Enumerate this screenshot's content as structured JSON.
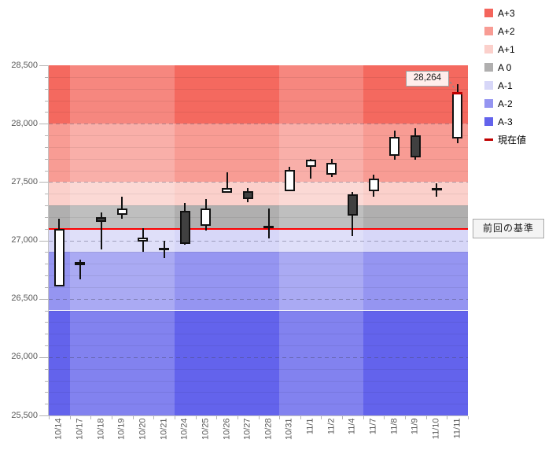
{
  "legend": {
    "items": [
      {
        "label": "A+3",
        "color": "#f4655c",
        "marker": "square"
      },
      {
        "label": "A+2",
        "color": "#f89c94",
        "marker": "square"
      },
      {
        "label": "A+1",
        "color": "#fbd0cb",
        "marker": "square"
      },
      {
        "label": "A 0",
        "color": "#b0afaf",
        "marker": "square"
      },
      {
        "label": "A-1",
        "color": "#d7d7f8",
        "marker": "square"
      },
      {
        "label": "A-2",
        "color": "#9595f1",
        "marker": "square"
      },
      {
        "label": "A-3",
        "color": "#6363ec",
        "marker": "square"
      },
      {
        "label": "現在値",
        "color": "#c00000",
        "marker": "dash"
      }
    ]
  },
  "chart_data": {
    "type": "candlestick",
    "title": "",
    "y_axis": {
      "min": 25500,
      "max": 28500,
      "major_tick": 500,
      "minor_tick": 100,
      "tick_labels": [
        "25,500",
        "26,000",
        "26,500",
        "27,000",
        "27,500",
        "28,000",
        "28,500"
      ],
      "label_color": "#595959"
    },
    "x_labels": [
      "10/14",
      "10/17",
      "10/18",
      "10/19",
      "10/20",
      "10/21",
      "10/24",
      "10/25",
      "10/26",
      "10/27",
      "10/28",
      "10/31",
      "11/1",
      "11/2",
      "11/4",
      "11/7",
      "11/8",
      "11/9",
      "11/10",
      "11/11"
    ],
    "candles": [
      {
        "date": "10/14",
        "open": 26605,
        "high": 27185,
        "low": 26605,
        "close": 27100
      },
      {
        "date": "10/17",
        "open": 26815,
        "high": 26835,
        "low": 26665,
        "close": 26790
      },
      {
        "date": "10/18",
        "open": 27200,
        "high": 27240,
        "low": 26925,
        "close": 27160
      },
      {
        "date": "10/19",
        "open": 27220,
        "high": 27375,
        "low": 27185,
        "close": 27275
      },
      {
        "date": "10/20",
        "open": 26990,
        "high": 27105,
        "low": 26900,
        "close": 27025
      },
      {
        "date": "10/21",
        "open": 26925,
        "high": 27000,
        "low": 26850,
        "close": 26905
      },
      {
        "date": "10/24",
        "open": 27255,
        "high": 27320,
        "low": 26965,
        "close": 26970
      },
      {
        "date": "10/25",
        "open": 27125,
        "high": 27355,
        "low": 27085,
        "close": 27275
      },
      {
        "date": "10/26",
        "open": 27410,
        "high": 27585,
        "low": 27405,
        "close": 27445
      },
      {
        "date": "10/27",
        "open": 27420,
        "high": 27445,
        "low": 27325,
        "close": 27355
      },
      {
        "date": "10/28",
        "open": 27115,
        "high": 27270,
        "low": 27020,
        "close": 27110
      },
      {
        "date": "10/31",
        "open": 27420,
        "high": 27630,
        "low": 27420,
        "close": 27605
      },
      {
        "date": "11/1",
        "open": 27630,
        "high": 27695,
        "low": 27530,
        "close": 27690
      },
      {
        "date": "11/2",
        "open": 27565,
        "high": 27700,
        "low": 27545,
        "close": 27665
      },
      {
        "date": "11/4",
        "open": 27395,
        "high": 27415,
        "low": 27040,
        "close": 27215
      },
      {
        "date": "11/7",
        "open": 27420,
        "high": 27565,
        "low": 27375,
        "close": 27530
      },
      {
        "date": "11/8",
        "open": 27725,
        "high": 27940,
        "low": 27690,
        "close": 27885
      },
      {
        "date": "11/9",
        "open": 27900,
        "high": 27960,
        "low": 27690,
        "close": 27710
      },
      {
        "date": "11/10",
        "open": 27435,
        "high": 27490,
        "low": 27375,
        "close": 27430
      },
      {
        "date": "11/11",
        "open": 27870,
        "high": 28340,
        "low": 27830,
        "close": 28264
      }
    ],
    "bands": [
      {
        "name": "A+3",
        "from": 28000,
        "to": 28500,
        "color": "#f4695f"
      },
      {
        "name": "A+2",
        "from": 27500,
        "to": 28000,
        "color": "#f89c94"
      },
      {
        "name": "A+1",
        "from": 27300,
        "to": 27500,
        "color": "#fbd0cb"
      },
      {
        "name": "A 0",
        "from": 27100,
        "to": 27300,
        "color": "#b0afaf"
      },
      {
        "name": "A-1",
        "from": 26900,
        "to": 27100,
        "color": "#d7d7f8"
      },
      {
        "name": "A-2",
        "from": 26400,
        "to": 26900,
        "color": "#9595f1"
      },
      {
        "name": "A-3",
        "from": 25500,
        "to": 26400,
        "color": "#6363ec"
      }
    ],
    "week_shading": {
      "light_overlay": "rgba(255,255,255,0.20)",
      "groups": [
        {
          "from": 0,
          "to": 0,
          "tone": "dark"
        },
        {
          "from": 1,
          "to": 5,
          "tone": "light"
        },
        {
          "from": 6,
          "to": 10,
          "tone": "dark"
        },
        {
          "from": 11,
          "to": 14,
          "tone": "light"
        },
        {
          "from": 15,
          "to": 19,
          "tone": "dark"
        }
      ]
    },
    "baseline": {
      "value": 27100,
      "color": "#fe0000",
      "label": "前回の基準"
    },
    "current_value": {
      "value": 28264,
      "label": "28,264",
      "marker_color": "#c00000"
    },
    "candle_colors": {
      "up_fill": "#ffffff",
      "down_fill": "#404040",
      "border": "#111111"
    }
  }
}
